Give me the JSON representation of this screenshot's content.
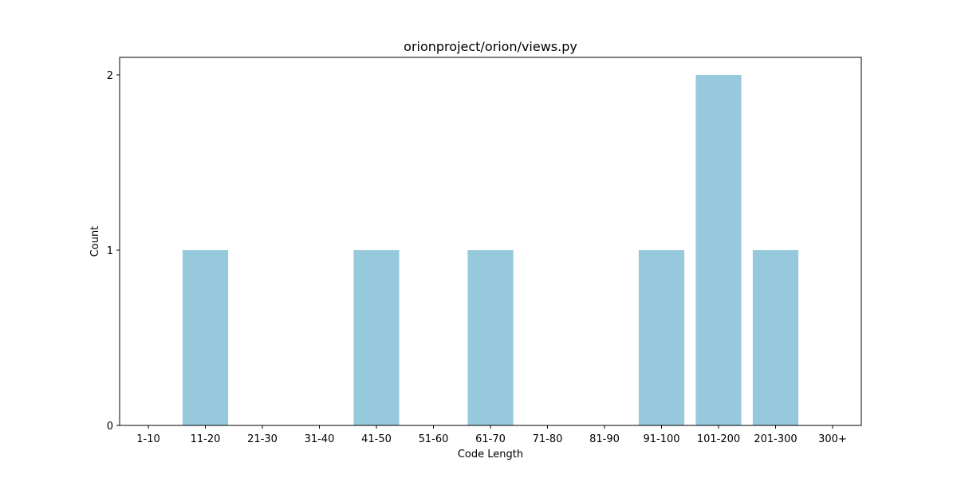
{
  "chart_data": {
    "type": "bar",
    "title": "orionproject/orion/views.py",
    "xlabel": "Code Length",
    "ylabel": "Count",
    "categories": [
      "1-10",
      "11-20",
      "21-30",
      "31-40",
      "41-50",
      "51-60",
      "61-70",
      "71-80",
      "81-90",
      "91-100",
      "101-200",
      "201-300",
      "300+"
    ],
    "values": [
      0,
      1,
      0,
      0,
      1,
      0,
      1,
      0,
      0,
      1,
      2,
      1,
      0
    ],
    "ylim": [
      0,
      2.1
    ],
    "yticks": [
      0,
      1,
      2
    ],
    "bar_color": "#96c9dc",
    "grid": false,
    "legend": "none"
  }
}
